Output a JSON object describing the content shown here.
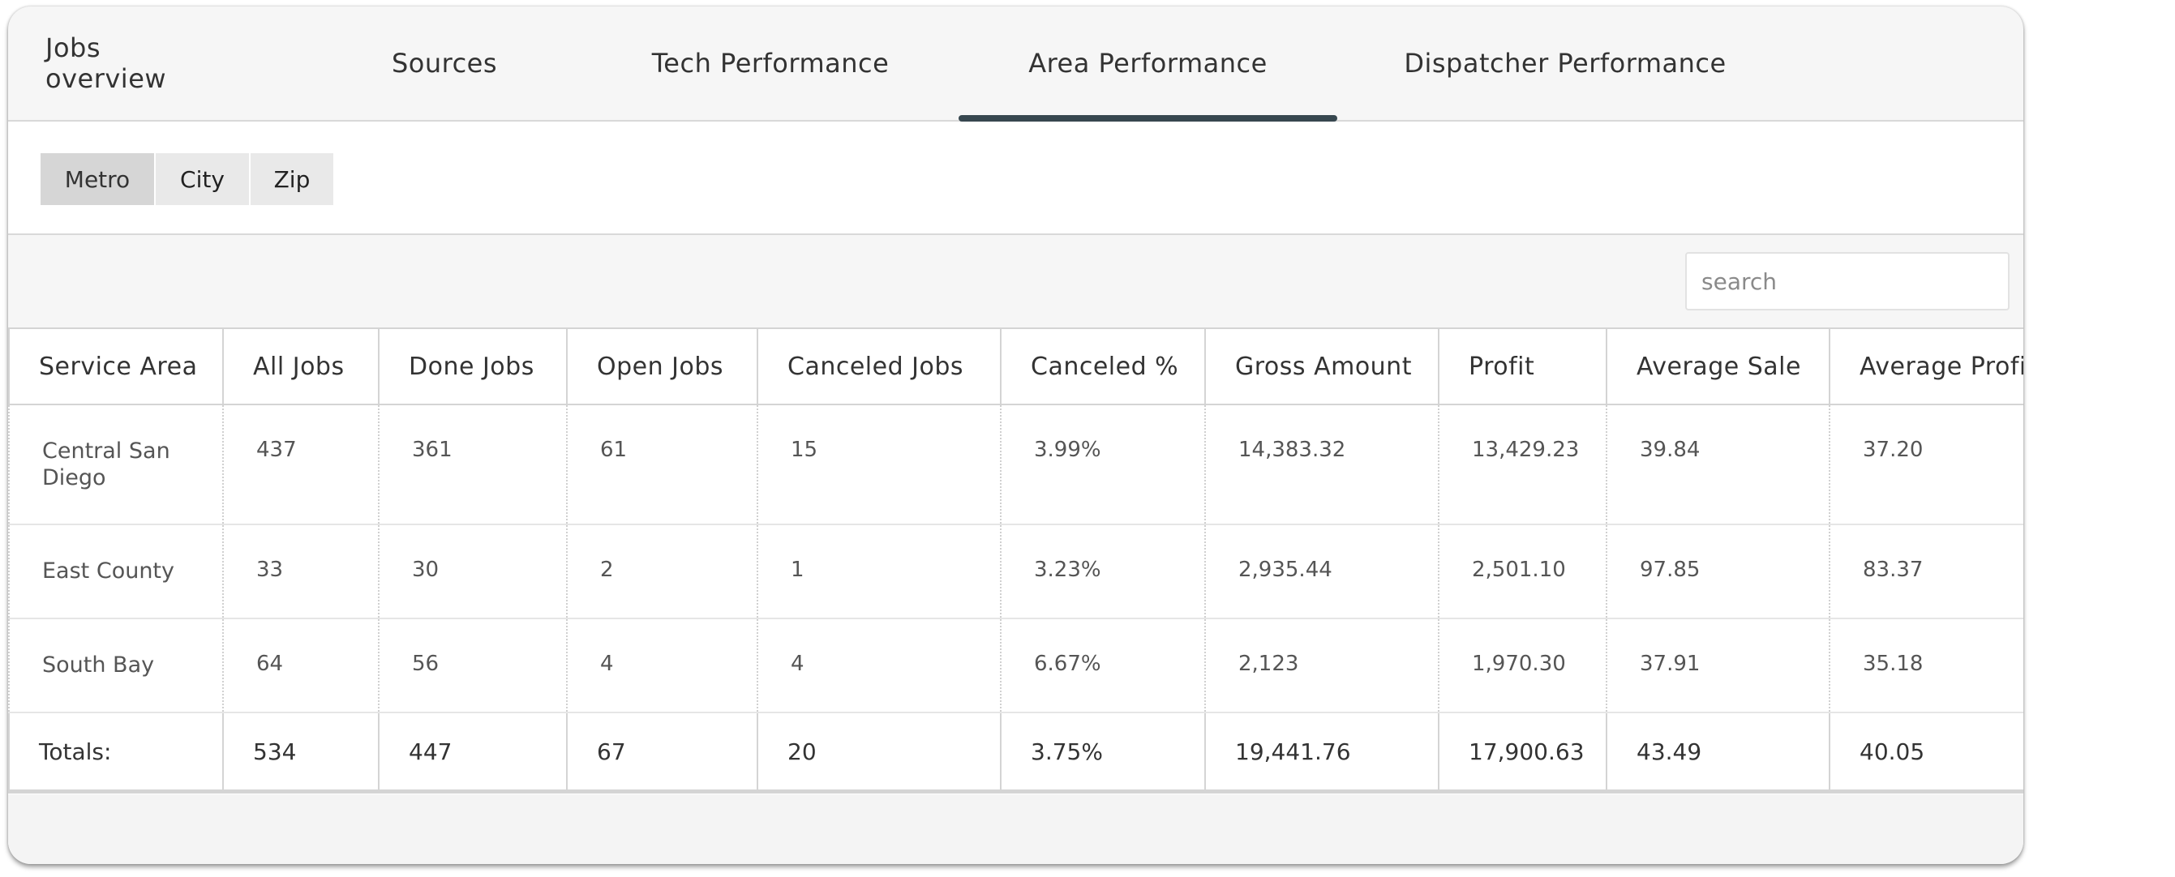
{
  "tabs": [
    {
      "label": "Jobs overview"
    },
    {
      "label": "Sources"
    },
    {
      "label": "Tech Performance"
    },
    {
      "label": "Area Performance",
      "active": true
    },
    {
      "label": "Dispatcher Performance"
    }
  ],
  "area_filter": {
    "options": [
      "Metro",
      "City",
      "Zip"
    ],
    "selected": "Metro"
  },
  "search": {
    "placeholder": "search",
    "value": ""
  },
  "table": {
    "columns": [
      "Service Area",
      "All Jobs",
      "Done Jobs",
      "Open Jobs",
      "Canceled Jobs",
      "Canceled %",
      "Gross Amount",
      "Profit",
      "Average Sale",
      "Average Profit"
    ],
    "rows": [
      [
        "Central San Diego",
        "437",
        "361",
        "61",
        "15",
        "3.99%",
        "14,383.32",
        "13,429.23",
        "39.84",
        "37.20"
      ],
      [
        "East County",
        "33",
        "30",
        "2",
        "1",
        "3.23%",
        "2,935.44",
        "2,501.10",
        "97.85",
        "83.37"
      ],
      [
        "South Bay",
        "64",
        "56",
        "4",
        "4",
        "6.67%",
        "2,123",
        "1,970.30",
        "37.91",
        "35.18"
      ]
    ],
    "totals": [
      "Totals:",
      "534",
      "447",
      "67",
      "20",
      "3.75%",
      "19,441.76",
      "17,900.63",
      "43.49",
      "40.05"
    ]
  },
  "colors": {
    "active_tab_underline": "#37474f",
    "selected_segment": "#d6d6d6"
  }
}
